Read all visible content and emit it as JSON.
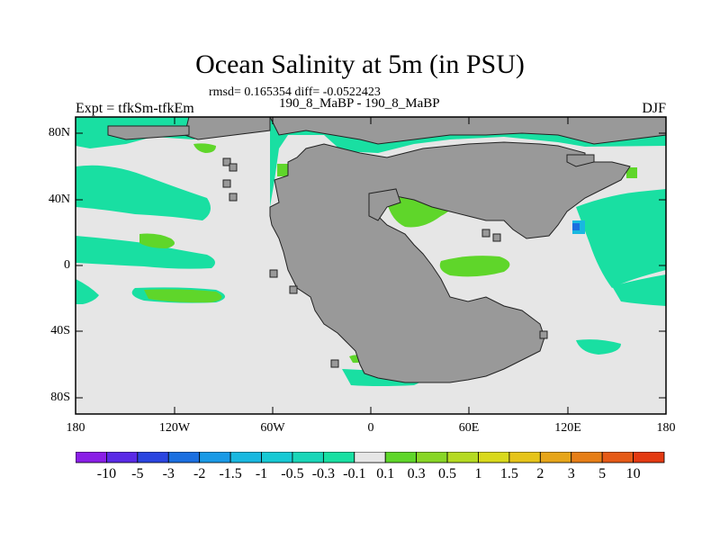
{
  "title": "Ocean Salinity at 5m (in PSU)",
  "stats_line": "rmsd= 0.165354 diff= -0.0522423",
  "expt_label": "Expt = tfkSm-tfkEm",
  "runs_label": "190_8_MaBP - 190_8_MaBP",
  "season_label": "DJF",
  "lat_axis": {
    "ticks": [
      "80N",
      "40N",
      "0",
      "40S",
      "80S"
    ]
  },
  "lon_axis": {
    "ticks": [
      "180",
      "120W",
      "60W",
      "0",
      "60E",
      "120E",
      "180"
    ]
  },
  "colorbar": {
    "labels": [
      "-10",
      "-5",
      "-3",
      "-2",
      "-1.5",
      "-1",
      "-0.5",
      "-0.3",
      "-0.1",
      "0.1",
      "0.3",
      "0.5",
      "1",
      "1.5",
      "2",
      "3",
      "5",
      "10"
    ],
    "colors": [
      "#8a1fe6",
      "#5a2ae6",
      "#2a45e0",
      "#1b6fe0",
      "#1a9ae6",
      "#19b8e0",
      "#17c9d4",
      "#1ad6b8",
      "#19dfa2",
      "#e6e6e6",
      "#5fd62a",
      "#88d626",
      "#b5da22",
      "#d9d91c",
      "#e6c41a",
      "#e6a51a",
      "#e67e17",
      "#e55a17",
      "#e33a12"
    ]
  },
  "map_colors": {
    "land": "#999999",
    "ocean_neutral": "#e6e6e6",
    "fresh_slight": "#19dfa2",
    "salty_slight": "#5fd62a",
    "salty_mid": "#88d626",
    "fresh_mid": "#19b8e0",
    "fresh_strong": "#1b6fe0"
  }
}
